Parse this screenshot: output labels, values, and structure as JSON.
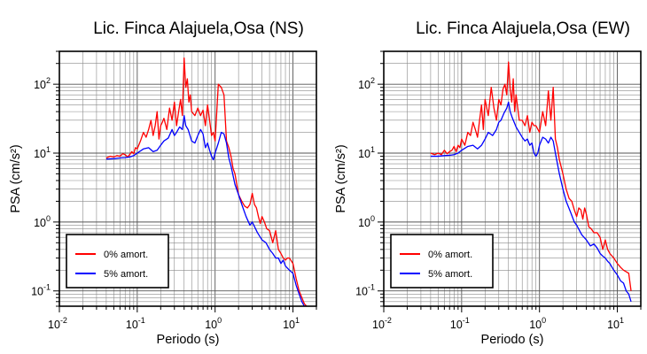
{
  "chart_data": [
    {
      "type": "line",
      "title": "Lic. Finca Alajuela,Osa (NS)",
      "xlabel": "Periodo (s)",
      "ylabel": "PSA (cm/s²)",
      "xscale": "log",
      "yscale": "log",
      "xlim": [
        0.01,
        20
      ],
      "ylim": [
        0.06,
        300
      ],
      "grid": true,
      "legend_position": "bottom-left",
      "x_ticks": [
        0.01,
        0.1,
        1,
        10
      ],
      "y_ticks": [
        0.1,
        1,
        10,
        100
      ],
      "series": [
        {
          "name": "0% amort.",
          "color": "#ff0000",
          "x": [
            0.04,
            0.045,
            0.05,
            0.055,
            0.06,
            0.065,
            0.07,
            0.075,
            0.08,
            0.085,
            0.09,
            0.095,
            0.1,
            0.11,
            0.12,
            0.13,
            0.14,
            0.15,
            0.16,
            0.17,
            0.18,
            0.19,
            0.2,
            0.21,
            0.22,
            0.24,
            0.26,
            0.28,
            0.3,
            0.32,
            0.34,
            0.36,
            0.38,
            0.4,
            0.42,
            0.44,
            0.46,
            0.48,
            0.5,
            0.55,
            0.6,
            0.65,
            0.7,
            0.75,
            0.8,
            0.85,
            0.9,
            0.95,
            1.0,
            1.1,
            1.2,
            1.3,
            1.4,
            1.5,
            1.6,
            1.7,
            1.8,
            1.9,
            2.0,
            2.2,
            2.4,
            2.6,
            2.8,
            3.0,
            3.2,
            3.4,
            3.6,
            3.8,
            4.0,
            4.3,
            4.6,
            5.0,
            5.5,
            6.0,
            6.5,
            7.0,
            7.5,
            8.0,
            8.5,
            9.0,
            10,
            11,
            12,
            13,
            14,
            15
          ],
          "y": [
            8.5,
            9.0,
            8.8,
            9.2,
            9.0,
            9.8,
            9.5,
            8.8,
            9.5,
            10.5,
            9.8,
            12.0,
            11.5,
            15.0,
            20.0,
            17.0,
            22.0,
            30.0,
            18.0,
            25.0,
            40.0,
            16.0,
            25.0,
            28.0,
            32.0,
            22.0,
            45.0,
            30.0,
            55.0,
            25.0,
            40.0,
            60.0,
            35.0,
            240.0,
            90.0,
            120.0,
            55.0,
            70.0,
            40.0,
            35.0,
            45.0,
            35.0,
            42.0,
            25.0,
            50.0,
            30.0,
            18.0,
            20.0,
            15.0,
            100.0,
            90.0,
            70.0,
            15.0,
            12.0,
            9.0,
            6.0,
            5.0,
            3.5,
            2.5,
            2.0,
            1.7,
            1.6,
            1.8,
            2.6,
            1.8,
            1.6,
            1.2,
            0.95,
            1.2,
            1.0,
            0.8,
            0.75,
            0.5,
            0.75,
            0.4,
            0.35,
            0.3,
            0.28,
            0.3,
            0.3,
            0.25,
            0.15,
            0.1,
            0.08,
            0.065,
            0.06
          ]
        },
        {
          "name": "5% amort.",
          "color": "#0000ff",
          "x": [
            0.04,
            0.05,
            0.06,
            0.07,
            0.08,
            0.09,
            0.1,
            0.12,
            0.14,
            0.16,
            0.18,
            0.2,
            0.22,
            0.25,
            0.28,
            0.3,
            0.32,
            0.35,
            0.38,
            0.4,
            0.42,
            0.45,
            0.5,
            0.55,
            0.6,
            0.65,
            0.7,
            0.75,
            0.8,
            0.85,
            0.9,
            0.95,
            1.0,
            1.1,
            1.2,
            1.3,
            1.4,
            1.5,
            1.6,
            1.8,
            2.0,
            2.2,
            2.5,
            2.8,
            3.0,
            3.5,
            4.0,
            4.5,
            5.0,
            5.5,
            6.0,
            6.5,
            7.0,
            7.5,
            8.0,
            9.0,
            10,
            11,
            12,
            13,
            14,
            15
          ],
          "y": [
            8.2,
            8.3,
            8.5,
            8.6,
            8.8,
            9.2,
            10.0,
            11.5,
            12.0,
            10.5,
            11.0,
            13.0,
            15.0,
            16.5,
            22.0,
            18.0,
            20.0,
            24.0,
            22.0,
            35.0,
            25.0,
            22.0,
            15.0,
            14.0,
            18.0,
            22.0,
            19.0,
            12.0,
            14.0,
            11.0,
            9.0,
            8.0,
            10.0,
            14.0,
            20.0,
            19.0,
            14.0,
            8.5,
            6.5,
            3.5,
            2.5,
            1.8,
            1.2,
            0.9,
            1.0,
            0.7,
            0.55,
            0.5,
            0.4,
            0.35,
            0.3,
            0.3,
            0.25,
            0.28,
            0.23,
            0.2,
            0.18,
            0.12,
            0.09,
            0.07,
            0.06,
            0.06
          ]
        }
      ]
    },
    {
      "type": "line",
      "title": "Lic. Finca Alajuela,Osa (EW)",
      "xlabel": "Periodo (s)",
      "ylabel": "PSA (cm/s²)",
      "xscale": "log",
      "yscale": "log",
      "xlim": [
        0.01,
        20
      ],
      "ylim": [
        0.06,
        300
      ],
      "grid": true,
      "legend_position": "bottom-left",
      "x_ticks": [
        0.01,
        0.1,
        1,
        10
      ],
      "y_ticks": [
        0.1,
        1,
        10,
        100
      ],
      "series": [
        {
          "name": "0% amort.",
          "color": "#ff0000",
          "x": [
            0.04,
            0.045,
            0.05,
            0.055,
            0.06,
            0.065,
            0.07,
            0.075,
            0.08,
            0.085,
            0.09,
            0.095,
            0.1,
            0.11,
            0.12,
            0.13,
            0.14,
            0.15,
            0.16,
            0.17,
            0.18,
            0.19,
            0.2,
            0.22,
            0.24,
            0.26,
            0.28,
            0.3,
            0.32,
            0.34,
            0.36,
            0.38,
            0.4,
            0.42,
            0.44,
            0.46,
            0.48,
            0.5,
            0.55,
            0.6,
            0.65,
            0.7,
            0.75,
            0.8,
            0.85,
            0.9,
            1.0,
            1.1,
            1.2,
            1.3,
            1.4,
            1.5,
            1.6,
            1.7,
            1.8,
            2.0,
            2.2,
            2.4,
            2.6,
            2.8,
            3.0,
            3.2,
            3.4,
            3.6,
            3.8,
            4.0,
            4.3,
            4.6,
            5.0,
            5.5,
            6.0,
            6.5,
            7.0,
            7.5,
            8.0,
            9.0,
            10,
            11,
            12,
            13,
            14,
            15
          ],
          "y": [
            10.0,
            9.5,
            10.0,
            9.5,
            11.0,
            9.8,
            10.5,
            11.0,
            12.5,
            10.5,
            13.0,
            12.0,
            16.0,
            13.0,
            20.0,
            18.0,
            28.0,
            22.0,
            17.0,
            30.0,
            50.0,
            22.0,
            60.0,
            35.0,
            90.0,
            45.0,
            30.0,
            60.0,
            50.0,
            85.0,
            100.0,
            70.0,
            210.0,
            85.0,
            55.0,
            120.0,
            40.0,
            70.0,
            30.0,
            30.0,
            25.0,
            35.0,
            20.0,
            28.0,
            25.0,
            25.0,
            20.0,
            40.0,
            25.0,
            80.0,
            30.0,
            90.0,
            16.0,
            12.0,
            8.0,
            5.0,
            3.0,
            2.2,
            2.0,
            1.5,
            1.2,
            1.6,
            1.5,
            1.1,
            1.6,
            1.3,
            0.85,
            0.8,
            0.7,
            0.7,
            0.6,
            0.4,
            0.55,
            0.4,
            0.35,
            0.3,
            0.25,
            0.22,
            0.2,
            0.19,
            0.18,
            0.1
          ]
        },
        {
          "name": "5% amort.",
          "color": "#0000ff",
          "x": [
            0.04,
            0.05,
            0.06,
            0.07,
            0.08,
            0.09,
            0.1,
            0.12,
            0.14,
            0.16,
            0.18,
            0.2,
            0.22,
            0.25,
            0.28,
            0.3,
            0.32,
            0.35,
            0.38,
            0.4,
            0.42,
            0.45,
            0.5,
            0.55,
            0.6,
            0.65,
            0.7,
            0.75,
            0.8,
            0.85,
            0.9,
            0.95,
            1.0,
            1.1,
            1.2,
            1.3,
            1.4,
            1.5,
            1.6,
            1.8,
            2.0,
            2.2,
            2.5,
            2.8,
            3.0,
            3.5,
            4.0,
            4.5,
            5.0,
            5.5,
            6.0,
            6.5,
            7.0,
            7.5,
            8.0,
            9.0,
            10,
            11,
            12,
            13,
            14,
            15
          ],
          "y": [
            9.0,
            9.0,
            9.2,
            9.3,
            9.5,
            10.0,
            11.0,
            12.5,
            13.0,
            11.5,
            13.0,
            16.0,
            20.0,
            18.0,
            22.0,
            28.0,
            30.0,
            38.0,
            45.0,
            55.0,
            40.0,
            32.0,
            24.0,
            20.0,
            17.0,
            15.0,
            16.0,
            13.0,
            14.0,
            10.0,
            9.0,
            10.0,
            13.0,
            17.0,
            16.0,
            14.0,
            17.0,
            15.0,
            10.0,
            5.0,
            3.0,
            2.0,
            1.4,
            1.0,
            0.9,
            0.65,
            0.55,
            0.45,
            0.48,
            0.42,
            0.35,
            0.32,
            0.3,
            0.27,
            0.25,
            0.2,
            0.17,
            0.14,
            0.13,
            0.1,
            0.09,
            0.07
          ]
        }
      ]
    }
  ]
}
